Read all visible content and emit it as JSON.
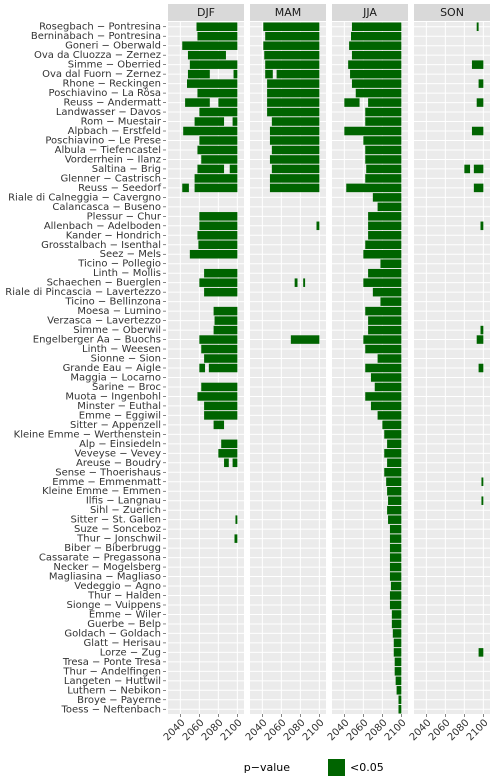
{
  "chart_data": {
    "type": "tile",
    "categories": [
      "Rosegbach − Pontresina",
      "Berninabach − Pontresina",
      "Goneri − Oberwald",
      "Ova da Cluozza − Zernez",
      "Simme − Oberried",
      "Ova dal Fuorn − Zernez",
      "Rhone − Reckingen",
      "Poschiavino − La Rösa",
      "Reuss − Andermatt",
      "Landwasser − Davos",
      "Rom − Muestair",
      "Alpbach − Erstfeld",
      "Poschiavino − Le Prese",
      "Albula − Tiefencastel",
      "Vorderrhein − Ilanz",
      "Saltina − Brig",
      "Glenner − Castrisch",
      "Reuss − Seedorf",
      "Riale di Calneggia − Cavergno",
      "Calancasca − Buseno",
      "Plessur − Chur",
      "Allenbach − Adelboden",
      "Kander − Hondrich",
      "Grosstalbach − Isenthal",
      "Seez − Mels",
      "Ticino − Pollegio",
      "Linth − Mollis",
      "Schaechen − Buerglen",
      "Riale di Pincascia − Lavertezzo",
      "Ticino − Bellinzona",
      "Moesa − Lumino",
      "Verzasca − Lavertezzo",
      "Simme − Oberwil",
      "Engelberger Aa − Buochs",
      "Linth − Weesen",
      "Sionne − Sion",
      "Grande Eau − Aigle",
      "Maggia − Locarno",
      "Sarine − Broc",
      "Muota − Ingenbohl",
      "Minster − Euthal",
      "Emme − Eggiwil",
      "Sitter − Appenzell",
      "Kleine Emme − Werthenstein",
      "Alp − Einsiedeln",
      "Veveyse − Vevey",
      "Areuse − Boudry",
      "Sense − Thoerishaus",
      "Emme − Emmenmatt",
      "Kleine Emme − Emmen",
      "Ilfis − Langnau",
      "Sihl − Zuerich",
      "Sitter − St. Gallen",
      "Suze − Sonceboz",
      "Thur − Jonschwil",
      "Biber − Biberbrugg",
      "Cassarate − Pregassona",
      "Necker − Mogelsberg",
      "Magliasina − Magliaso",
      "Vedeggio − Agno",
      "Thur − Halden",
      "Sionge − Vuippens",
      "Emme − Wiler",
      "Guerbe − Belp",
      "Goldach − Goldach",
      "Glatt − Herisau",
      "Lorze − Zug",
      "Tresa − Ponte Tresa",
      "Thur − Andelfingen",
      "Langeten − Huttwil",
      "Luthern − Nebikon",
      "Broye − Payerne",
      "Toess − Neftenbach"
    ],
    "facets": [
      {
        "name": "DJF",
        "intervals": [
          [
            [
              2057,
              2099
            ]
          ],
          [
            [
              2058,
              2099
            ]
          ],
          [
            [
              2042,
              2099
            ]
          ],
          [
            [
              2048,
              2087
            ]
          ],
          [
            [
              2050,
              2099
            ]
          ],
          [
            [
              2048,
              2070
            ],
            [
              2096,
              2099
            ]
          ],
          [
            [
              2047,
              2099
            ]
          ],
          [
            [
              2058,
              2099
            ]
          ],
          [
            [
              2045,
              2070
            ],
            [
              2080,
              2099
            ]
          ],
          [
            [
              2060,
              2099
            ]
          ],
          [
            [
              2055,
              2085
            ],
            [
              2095,
              2099
            ]
          ],
          [
            [
              2043,
              2099
            ]
          ],
          [
            [
              2060,
              2099
            ]
          ],
          [
            [
              2058,
              2099
            ]
          ],
          [
            [
              2062,
              2099
            ]
          ],
          [
            [
              2058,
              2085
            ],
            [
              2092,
              2099
            ]
          ],
          [
            [
              2055,
              2099
            ]
          ],
          [
            [
              2042,
              2048
            ],
            [
              2055,
              2099
            ]
          ],
          [],
          [],
          [
            [
              2060,
              2099
            ]
          ],
          [
            [
              2060,
              2099
            ]
          ],
          [
            [
              2058,
              2099
            ]
          ],
          [
            [
              2059,
              2099
            ]
          ],
          [
            [
              2050,
              2099
            ]
          ],
          [],
          [
            [
              2065,
              2099
            ]
          ],
          [
            [
              2060,
              2099
            ]
          ],
          [
            [
              2065,
              2099
            ]
          ],
          [],
          [
            [
              2075,
              2099
            ]
          ],
          [
            [
              2076,
              2099
            ]
          ],
          [
            [
              2075,
              2099
            ]
          ],
          [
            [
              2060,
              2099
            ]
          ],
          [
            [
              2062,
              2099
            ]
          ],
          [
            [
              2065,
              2099
            ]
          ],
          [
            [
              2060,
              2065
            ],
            [
              2070,
              2099
            ]
          ],
          [],
          [
            [
              2062,
              2099
            ]
          ],
          [
            [
              2058,
              2099
            ]
          ],
          [
            [
              2065,
              2099
            ]
          ],
          [
            [
              2065,
              2099
            ]
          ],
          [
            [
              2075,
              2085
            ]
          ],
          [],
          [
            [
              2083,
              2099
            ]
          ],
          [
            [
              2080,
              2099
            ]
          ],
          [
            [
              2086,
              2090
            ],
            [
              2095,
              2099
            ]
          ],
          [],
          [],
          [],
          [],
          [],
          [
            [
              2098,
              2099
            ]
          ],
          [],
          [
            [
              2097,
              2099
            ]
          ],
          [],
          [],
          [],
          [],
          [],
          [],
          [],
          [],
          [],
          [],
          [],
          [],
          [],
          [],
          [],
          [],
          [],
          []
        ]
      },
      {
        "name": "MAM",
        "intervals": [
          [
            [
              2041,
              2099
            ]
          ],
          [
            [
              2043,
              2099
            ]
          ],
          [
            [
              2041,
              2099
            ]
          ],
          [
            [
              2042,
              2099
            ]
          ],
          [
            [
              2043,
              2099
            ]
          ],
          [
            [
              2043,
              2050
            ],
            [
              2055,
              2099
            ]
          ],
          [
            [
              2045,
              2099
            ]
          ],
          [
            [
              2045,
              2099
            ]
          ],
          [
            [
              2045,
              2099
            ]
          ],
          [
            [
              2045,
              2099
            ]
          ],
          [
            [
              2050,
              2099
            ]
          ],
          [
            [
              2048,
              2099
            ]
          ],
          [
            [
              2048,
              2099
            ]
          ],
          [
            [
              2050,
              2099
            ]
          ],
          [
            [
              2048,
              2099
            ]
          ],
          [
            [
              2050,
              2099
            ]
          ],
          [
            [
              2048,
              2099
            ]
          ],
          [
            [
              2048,
              2099
            ]
          ],
          [],
          [],
          [],
          [
            [
              2097,
              2099
            ]
          ],
          [],
          [],
          [],
          [],
          [],
          [
            [
              2074,
              2076
            ],
            [
              2083,
              2084
            ]
          ],
          [],
          [],
          [],
          [],
          [],
          [
            [
              2070,
              2099
            ]
          ],
          [],
          [],
          [],
          [],
          [],
          [],
          [],
          [],
          [],
          [],
          [],
          [],
          [],
          [],
          [],
          [],
          [],
          [],
          [],
          [],
          [],
          [],
          [],
          [],
          [],
          [],
          [],
          [],
          [],
          [],
          [],
          [],
          [],
          [],
          [],
          [],
          [],
          [],
          []
        ]
      },
      {
        "name": "JJA",
        "intervals": [
          [
            [
              2048,
              2099
            ]
          ],
          [
            [
              2047,
              2099
            ]
          ],
          [
            [
              2045,
              2099
            ]
          ],
          [
            [
              2048,
              2099
            ]
          ],
          [
            [
              2044,
              2099
            ]
          ],
          [
            [
              2046,
              2099
            ]
          ],
          [
            [
              2048,
              2099
            ]
          ],
          [
            [
              2052,
              2099
            ]
          ],
          [
            [
              2040,
              2055
            ],
            [
              2065,
              2099
            ]
          ],
          [
            [
              2062,
              2099
            ]
          ],
          [
            [
              2062,
              2099
            ]
          ],
          [
            [
              2040,
              2099
            ]
          ],
          [
            [
              2060,
              2099
            ]
          ],
          [
            [
              2062,
              2099
            ]
          ],
          [
            [
              2062,
              2099
            ]
          ],
          [
            [
              2063,
              2099
            ]
          ],
          [
            [
              2062,
              2099
            ]
          ],
          [
            [
              2042,
              2099
            ]
          ],
          [
            [
              2070,
              2099
            ]
          ],
          [
            [
              2075,
              2099
            ]
          ],
          [
            [
              2065,
              2099
            ]
          ],
          [
            [
              2065,
              2099
            ]
          ],
          [
            [
              2065,
              2099
            ]
          ],
          [
            [
              2062,
              2099
            ]
          ],
          [
            [
              2060,
              2099
            ]
          ],
          [
            [
              2078,
              2099
            ]
          ],
          [
            [
              2065,
              2099
            ]
          ],
          [
            [
              2060,
              2099
            ]
          ],
          [
            [
              2070,
              2099
            ]
          ],
          [
            [
              2078,
              2099
            ]
          ],
          [
            [
              2062,
              2099
            ]
          ],
          [
            [
              2065,
              2099
            ]
          ],
          [
            [
              2065,
              2099
            ]
          ],
          [
            [
              2060,
              2099
            ]
          ],
          [
            [
              2062,
              2099
            ]
          ],
          [
            [
              2075,
              2099
            ]
          ],
          [
            [
              2062,
              2099
            ]
          ],
          [
            [
              2068,
              2099
            ]
          ],
          [
            [
              2072,
              2099
            ]
          ],
          [
            [
              2062,
              2099
            ]
          ],
          [
            [
              2068,
              2099
            ]
          ],
          [
            [
              2075,
              2099
            ]
          ],
          [
            [
              2080,
              2099
            ]
          ],
          [
            [
              2082,
              2099
            ]
          ],
          [
            [
              2085,
              2099
            ]
          ],
          [
            [
              2082,
              2099
            ]
          ],
          [
            [
              2085,
              2099
            ]
          ],
          [
            [
              2082,
              2099
            ]
          ],
          [
            [
              2084,
              2099
            ]
          ],
          [
            [
              2085,
              2099
            ]
          ],
          [
            [
              2086,
              2099
            ]
          ],
          [
            [
              2085,
              2099
            ]
          ],
          [
            [
              2086,
              2099
            ]
          ],
          [
            [
              2088,
              2099
            ]
          ],
          [
            [
              2088,
              2099
            ]
          ],
          [
            [
              2088,
              2099
            ]
          ],
          [
            [
              2088,
              2099
            ]
          ],
          [
            [
              2088,
              2099
            ]
          ],
          [
            [
              2088,
              2099
            ]
          ],
          [
            [
              2089,
              2099
            ]
          ],
          [
            [
              2088,
              2099
            ]
          ],
          [
            [
              2088,
              2099
            ]
          ],
          [
            [
              2090,
              2099
            ]
          ],
          [
            [
              2090,
              2099
            ]
          ],
          [
            [
              2091,
              2099
            ]
          ],
          [
            [
              2092,
              2099
            ]
          ],
          [
            [
              2092,
              2099
            ]
          ],
          [
            [
              2093,
              2099
            ]
          ],
          [
            [
              2093,
              2099
            ]
          ],
          [
            [
              2094,
              2099
            ]
          ],
          [
            [
              2095,
              2099
            ]
          ],
          [
            [
              2097,
              2099
            ]
          ],
          [
            [
              2097,
              2099
            ]
          ]
        ]
      },
      {
        "name": "SON",
        "intervals": [
          [
            [
              2093,
              2094
            ]
          ],
          [],
          [],
          [],
          [
            [
              2088,
              2099
            ]
          ],
          [],
          [
            [
              2095,
              2099
            ]
          ],
          [],
          [
            [
              2093,
              2099
            ]
          ],
          [],
          [],
          [
            [
              2088,
              2099
            ]
          ],
          [],
          [],
          [],
          [
            [
              2080,
              2085
            ],
            [
              2090,
              2099
            ]
          ],
          [],
          [
            [
              2090,
              2099
            ]
          ],
          [],
          [],
          [],
          [
            [
              2097,
              2099
            ]
          ],
          [],
          [],
          [],
          [],
          [],
          [],
          [],
          [],
          [],
          [],
          [
            [
              2097,
              2099
            ]
          ],
          [
            [
              2093,
              2099
            ]
          ],
          [],
          [],
          [
            [
              2095,
              2099
            ]
          ],
          [],
          [],
          [],
          [],
          [],
          [],
          [],
          [],
          [],
          [],
          [],
          [
            [
              2098,
              2099
            ]
          ],
          [],
          [
            [
              2098,
              2099
            ]
          ],
          [],
          [],
          [],
          [],
          [],
          [],
          [],
          [],
          [],
          [],
          [],
          [],
          [],
          [],
          [],
          [
            [
              2095,
              2099
            ]
          ],
          [],
          [],
          [],
          [],
          [],
          []
        ]
      }
    ],
    "color": "#006400",
    "xlim": [
      2027,
      2107
    ],
    "xticks": [
      2040,
      2060,
      2080,
      2100
    ],
    "grid": true,
    "legend": {
      "title": "p−value",
      "label": "<0.05"
    }
  }
}
